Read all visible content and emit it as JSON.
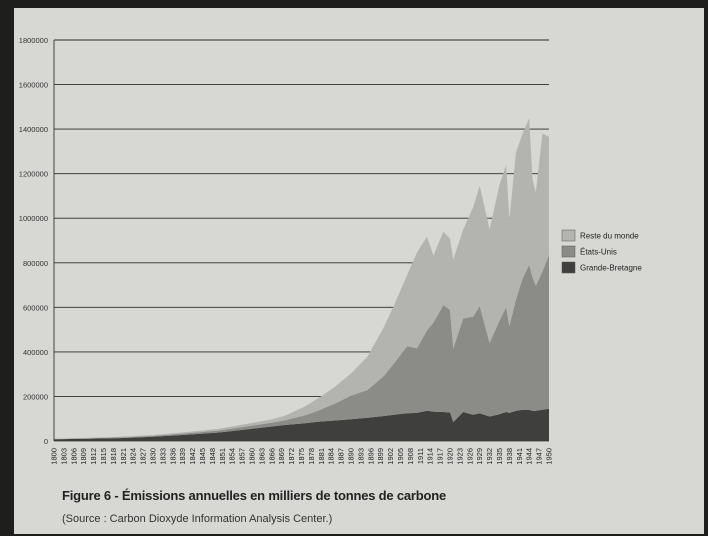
{
  "colors": {
    "reste_du_monde": "#b3b3b0",
    "etats_unis": "#8b8b88",
    "grande_bretagne": "#3f3f3d",
    "gridline": "#2a2a2a"
  },
  "caption": {
    "title": "Figure 6 - Émissions annuelles en milliers de tonnes de carbone",
    "source": "(Source : Carbon Dioxyde Information Analysis Center.)"
  },
  "chart_data": {
    "type": "area",
    "stacked": true,
    "title": "Figure 6 - Émissions annuelles en milliers de tonnes de carbone",
    "xlabel": "",
    "ylabel": "",
    "ylim": [
      0,
      1800000
    ],
    "yticks": [
      0,
      200000,
      400000,
      600000,
      800000,
      1000000,
      1200000,
      1400000,
      1600000,
      1800000
    ],
    "xticks": [
      1800,
      1803,
      1806,
      1809,
      1812,
      1815,
      1818,
      1821,
      1824,
      1827,
      1830,
      1833,
      1836,
      1839,
      1842,
      1845,
      1848,
      1851,
      1854,
      1857,
      1860,
      1863,
      1866,
      1869,
      1872,
      1875,
      1878,
      1881,
      1884,
      1887,
      1890,
      1893,
      1896,
      1899,
      1902,
      1905,
      1908,
      1911,
      1914,
      1917,
      1920,
      1923,
      1926,
      1929,
      1932,
      1935,
      1938,
      1941,
      1944,
      1947,
      1950
    ],
    "grid": true,
    "legend_position": "right",
    "x": [
      1800,
      1810,
      1820,
      1830,
      1840,
      1850,
      1860,
      1866,
      1870,
      1876,
      1880,
      1885,
      1890,
      1895,
      1900,
      1903,
      1907,
      1910,
      1913,
      1915,
      1918,
      1920,
      1921,
      1924,
      1927,
      1929,
      1932,
      1935,
      1937,
      1938,
      1940,
      1942,
      1944,
      1945,
      1946,
      1948,
      1950
    ],
    "series": [
      {
        "name": "Grande-Bretagne",
        "values": [
          8000,
          10000,
          13000,
          19000,
          28000,
          38000,
          55000,
          65000,
          72000,
          80000,
          86000,
          92000,
          98000,
          104000,
          112000,
          118000,
          125000,
          126000,
          136000,
          132000,
          130000,
          128000,
          85000,
          130000,
          118000,
          125000,
          110000,
          120000,
          130000,
          126000,
          135000,
          140000,
          140000,
          135000,
          136000,
          140000,
          145000
        ]
      },
      {
        "name": "États-Unis",
        "values": [
          1000,
          2000,
          3000,
          4000,
          6000,
          9000,
          14000,
          17000,
          21000,
          35000,
          50000,
          75000,
          105000,
          125000,
          180000,
          230000,
          300000,
          290000,
          360000,
          400000,
          480000,
          460000,
          330000,
          420000,
          440000,
          480000,
          330000,
          420000,
          470000,
          390000,
          500000,
          590000,
          650000,
          600000,
          560000,
          620000,
          690000
        ]
      },
      {
        "name": "Reste du monde",
        "values": [
          1000,
          2000,
          3000,
          4000,
          6000,
          8000,
          12000,
          15000,
          20000,
          40000,
          55000,
          75000,
          100000,
          150000,
          220000,
          260000,
          320000,
          430000,
          420000,
          300000,
          330000,
          320000,
          400000,
          400000,
          490000,
          540000,
          510000,
          610000,
          640000,
          480000,
          660000,
          650000,
          660000,
          440000,
          420000,
          620000,
          530000
        ]
      }
    ]
  },
  "legend": [
    {
      "label": "Reste du monde",
      "color": "#b3b3b0"
    },
    {
      "label": "États-Unis",
      "color": "#8b8b88"
    },
    {
      "label": "Grande-Bretagne",
      "color": "#3f3f3d"
    }
  ]
}
